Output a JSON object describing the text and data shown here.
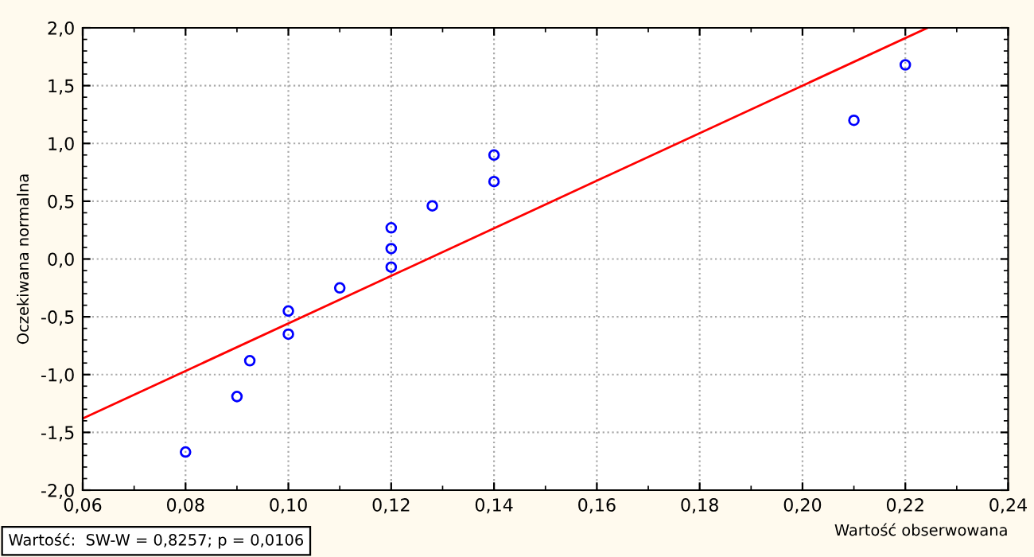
{
  "chart_data": {
    "type": "scatter",
    "xlabel": "Wartość obserwowana",
    "ylabel": "Oczekiwana normalna",
    "annotations": [
      "Wartość:  SW-W = 0,8257; p = 0,0106"
    ],
    "series": [
      {
        "marker": "circle",
        "color": "#0000ff",
        "x": [
          0.08,
          0.09,
          0.0925,
          0.1,
          0.1,
          0.11,
          0.12,
          0.12,
          0.12,
          0.128,
          0.14,
          0.14,
          0.21,
          0.22
        ],
        "values": [
          -1.67,
          -1.19,
          -0.88,
          -0.45,
          -0.65,
          -0.25,
          0.27,
          0.09,
          -0.07,
          0.46,
          0.67,
          0.9,
          1.2,
          1.68
        ]
      },
      {
        "type": "line",
        "marker": "none",
        "color": "#ff0000",
        "x": [
          0.06,
          0.2243
        ],
        "values": [
          -1.38,
          2.0
        ]
      }
    ],
    "xlim": [
      0.06,
      0.24
    ],
    "ylim": [
      -2.0,
      2.0
    ],
    "xticks": [
      {
        "value": 0.06,
        "label": "0,06"
      },
      {
        "value": 0.08,
        "label": "0,08"
      },
      {
        "value": 0.1,
        "label": "0,10"
      },
      {
        "value": 0.12,
        "label": "0,12"
      },
      {
        "value": 0.14,
        "label": "0,14"
      },
      {
        "value": 0.16,
        "label": "0,16"
      },
      {
        "value": 0.18,
        "label": "0,18"
      },
      {
        "value": 0.2,
        "label": "0,20"
      },
      {
        "value": 0.22,
        "label": "0,22"
      },
      {
        "value": 0.24,
        "label": "0,24"
      }
    ],
    "yticks": [
      {
        "value": -2.0,
        "label": "-2,0"
      },
      {
        "value": -1.5,
        "label": "-1,5"
      },
      {
        "value": -1.0,
        "label": "-1,0"
      },
      {
        "value": -0.5,
        "label": "-0,5"
      },
      {
        "value": 0.0,
        "label": "0,0"
      },
      {
        "value": 0.5,
        "label": "0,5"
      },
      {
        "value": 1.0,
        "label": "1,0"
      },
      {
        "value": 1.5,
        "label": "1,5"
      },
      {
        "value": 2.0,
        "label": "2,0"
      }
    ],
    "grid": true
  }
}
